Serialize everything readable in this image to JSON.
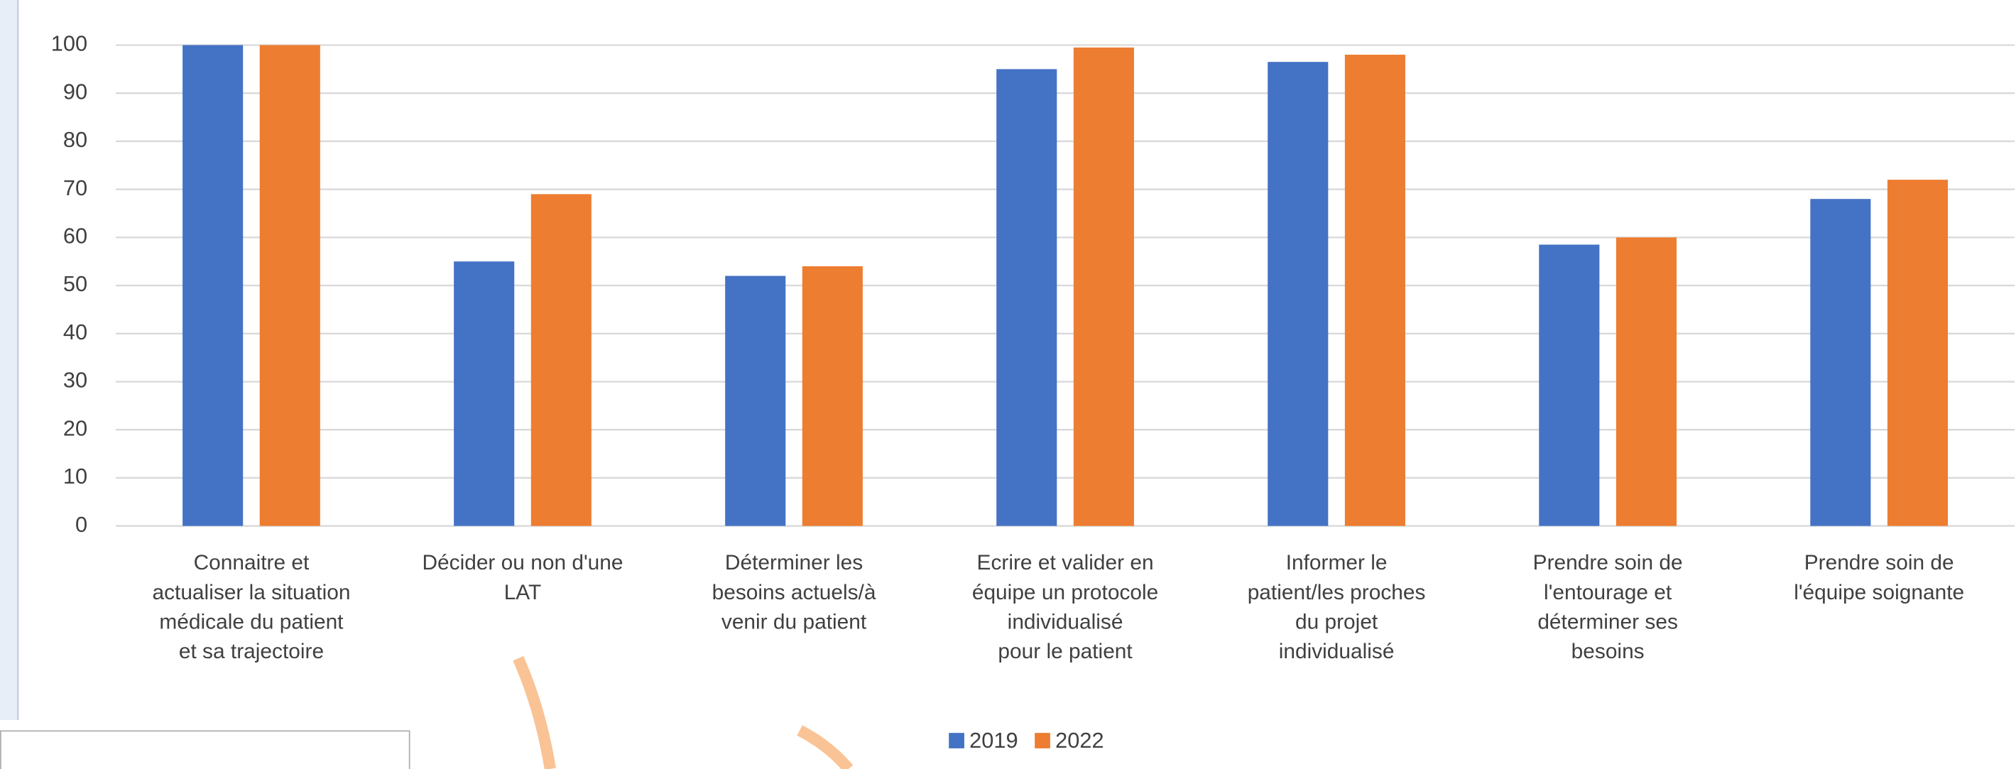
{
  "chart_data": {
    "type": "bar",
    "categories": [
      "Connaitre et\nactualiser la situation\nmédicale du patient\net sa trajectoire",
      "Décider ou non d'une\nLAT",
      "Déterminer les\nbesoins actuels/à\nvenir du patient",
      "Ecrire et valider en\néquipe un protocole\nindividualisé\npour le patient",
      "Informer le\npatient/les proches\ndu projet\nindividualisé",
      "Prendre soin de\nl'entourage et\ndéterminer ses\nbesoins",
      "Prendre soin de\nl'équipe soignante"
    ],
    "series": [
      {
        "name": "2019",
        "color": "#4472c4",
        "values": [
          100,
          55,
          52,
          95,
          96.5,
          58.5,
          68
        ]
      },
      {
        "name": "2022",
        "color": "#ed7d31",
        "values": [
          100,
          69,
          54,
          99.5,
          98,
          60,
          72
        ]
      }
    ],
    "ylim": [
      0,
      100
    ],
    "yticks": [
      0,
      10,
      20,
      30,
      40,
      50,
      60,
      70,
      80,
      90,
      100
    ],
    "grid": true,
    "legend": "bottom"
  }
}
